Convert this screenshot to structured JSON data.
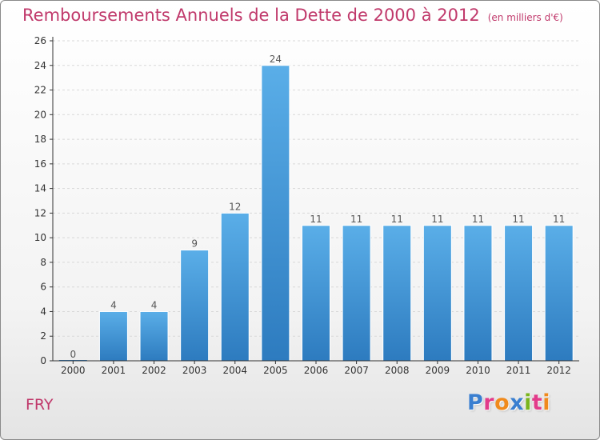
{
  "title": "Remboursements Annuels de la Dette de 2000 à 2012",
  "unit_note": "(en milliers d'€)",
  "commune": "FRY",
  "logo": {
    "text": "Proxiti",
    "letter_colors": [
      "#3a7fd0",
      "#e23b8a",
      "#f08a1c",
      "#3a7fd0",
      "#7ab51d",
      "#e23b8a",
      "#f08a1c"
    ]
  },
  "colors": {
    "title": "#c0396b",
    "bar_light": "#5aaee8",
    "bar_dark": "#2d7bbf",
    "axis": "#333333",
    "grid": "#d8d8d8"
  },
  "chart_data": {
    "type": "bar",
    "categories": [
      "2000",
      "2001",
      "2002",
      "2003",
      "2004",
      "2005",
      "2006",
      "2007",
      "2008",
      "2009",
      "2010",
      "2011",
      "2012"
    ],
    "values": [
      0,
      4,
      4,
      9,
      12,
      24,
      11,
      11,
      11,
      11,
      11,
      11,
      11
    ],
    "data_labels": [
      "0",
      "4",
      "4",
      "9",
      "12",
      "24",
      "11",
      "11",
      "11",
      "11",
      "11",
      "11",
      "11"
    ],
    "yticks": [
      0,
      2,
      4,
      6,
      8,
      10,
      12,
      14,
      16,
      18,
      20,
      22,
      24,
      26
    ],
    "ylim": [
      0,
      26
    ],
    "grid": true
  }
}
